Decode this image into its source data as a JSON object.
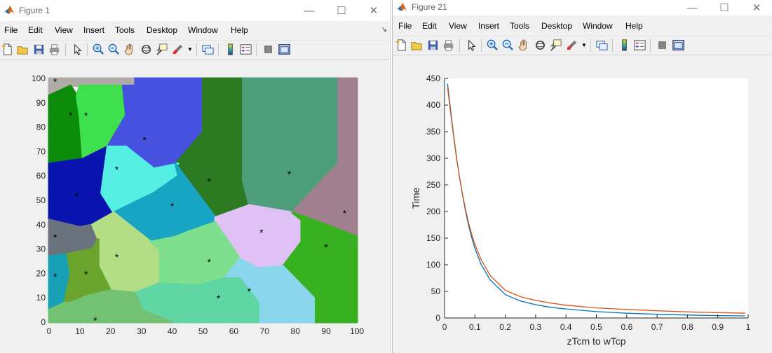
{
  "fig1": {
    "title": "Figure 1",
    "menu": [
      "File",
      "Edit",
      "View",
      "Insert",
      "Tools",
      "Desktop",
      "Window",
      "Help"
    ],
    "x_ticks": [
      "0",
      "10",
      "20",
      "30",
      "40",
      "50",
      "60",
      "70",
      "80",
      "90",
      "100"
    ],
    "y_ticks": [
      "0",
      "10",
      "20",
      "30",
      "40",
      "50",
      "60",
      "70",
      "80",
      "90",
      "100"
    ],
    "cells": [
      {
        "color": "#b0aba5",
        "points": [
          [
            0,
            100
          ],
          [
            28,
            100
          ],
          [
            28,
            97
          ],
          [
            7,
            97
          ],
          [
            0,
            93
          ]
        ]
      },
      {
        "color": "#0b8c0b",
        "points": [
          [
            0,
            93
          ],
          [
            7,
            97
          ],
          [
            9,
            93
          ],
          [
            10,
            84
          ],
          [
            11,
            65
          ],
          [
            0,
            65
          ]
        ]
      },
      {
        "color": "#3ee04d",
        "points": [
          [
            9,
            93
          ],
          [
            10,
            97
          ],
          [
            24,
            97
          ],
          [
            25,
            85
          ],
          [
            19,
            72
          ],
          [
            11,
            67
          ],
          [
            10,
            84
          ]
        ]
      },
      {
        "color": "#4651e0",
        "points": [
          [
            28,
            97
          ],
          [
            28,
            100
          ],
          [
            50,
            100
          ],
          [
            50,
            78
          ],
          [
            42,
            65
          ],
          [
            34,
            63
          ],
          [
            25,
            72
          ],
          [
            19,
            72
          ],
          [
            25,
            85
          ],
          [
            24,
            97
          ]
        ]
      },
      {
        "color": "#2b7a22",
        "points": [
          [
            50,
            100
          ],
          [
            63,
            100
          ],
          [
            63,
            58
          ],
          [
            65,
            48
          ],
          [
            54,
            43
          ],
          [
            41,
            65
          ],
          [
            50,
            78
          ]
        ]
      },
      {
        "color": "#4e9e7b",
        "points": [
          [
            63,
            100
          ],
          [
            94,
            100
          ],
          [
            94,
            65
          ],
          [
            90,
            60
          ],
          [
            79,
            45
          ],
          [
            65,
            48
          ],
          [
            63,
            58
          ]
        ]
      },
      {
        "color": "#a07f8e",
        "points": [
          [
            94,
            100
          ],
          [
            100,
            100
          ],
          [
            100,
            35
          ],
          [
            90,
            40
          ],
          [
            79,
            45
          ],
          [
            90,
            60
          ],
          [
            94,
            65
          ]
        ]
      },
      {
        "color": "#0a15b0",
        "points": [
          [
            0,
            65
          ],
          [
            11,
            67
          ],
          [
            19,
            72
          ],
          [
            17,
            53
          ],
          [
            21,
            45
          ],
          [
            14,
            40
          ],
          [
            10,
            39
          ],
          [
            0,
            42
          ]
        ]
      },
      {
        "color": "#55efe4",
        "points": [
          [
            19,
            72
          ],
          [
            25,
            72
          ],
          [
            34,
            63
          ],
          [
            42,
            65
          ],
          [
            41,
            65
          ],
          [
            42,
            60
          ],
          [
            34,
            53
          ],
          [
            21,
            45
          ],
          [
            17,
            53
          ]
        ]
      },
      {
        "color": "#18a5c3",
        "points": [
          [
            21,
            45
          ],
          [
            34,
            53
          ],
          [
            42,
            60
          ],
          [
            41,
            65
          ],
          [
            54,
            43
          ],
          [
            54,
            41
          ],
          [
            45,
            37
          ],
          [
            41,
            35
          ],
          [
            33,
            33
          ]
        ]
      },
      {
        "color": "#6a727d",
        "points": [
          [
            0,
            42
          ],
          [
            10,
            39
          ],
          [
            14,
            40
          ],
          [
            16,
            34
          ],
          [
            14,
            30
          ],
          [
            6,
            28
          ],
          [
            0,
            27
          ]
        ]
      },
      {
        "color": "#b3de85",
        "points": [
          [
            14,
            40
          ],
          [
            21,
            45
          ],
          [
            33,
            33
          ],
          [
            36,
            30
          ],
          [
            36,
            16
          ],
          [
            28,
            12
          ],
          [
            20,
            13
          ],
          [
            16,
            23
          ],
          [
            16,
            34
          ]
        ]
      },
      {
        "color": "#e0c1f5",
        "points": [
          [
            54,
            41
          ],
          [
            54,
            43
          ],
          [
            65,
            48
          ],
          [
            79,
            45
          ],
          [
            82,
            42
          ],
          [
            82,
            33
          ],
          [
            76,
            23
          ],
          [
            68,
            22
          ],
          [
            62,
            26
          ]
        ]
      },
      {
        "color": "#38b121",
        "points": [
          [
            82,
            42
          ],
          [
            79,
            45
          ],
          [
            90,
            40
          ],
          [
            100,
            35
          ],
          [
            100,
            0
          ],
          [
            86,
            0
          ],
          [
            86,
            10
          ],
          [
            76,
            23
          ],
          [
            82,
            33
          ]
        ]
      },
      {
        "color": "#17a0b6",
        "points": [
          [
            0,
            27
          ],
          [
            6,
            28
          ],
          [
            7,
            20
          ],
          [
            5,
            8
          ],
          [
            0,
            5
          ]
        ]
      },
      {
        "color": "#6aa42c",
        "points": [
          [
            6,
            28
          ],
          [
            14,
            30
          ],
          [
            16,
            34
          ],
          [
            16,
            23
          ],
          [
            20,
            13
          ],
          [
            13,
            11
          ],
          [
            7,
            8
          ],
          [
            5,
            8
          ],
          [
            7,
            20
          ]
        ]
      },
      {
        "color": "#7ee08f",
        "points": [
          [
            33,
            33
          ],
          [
            41,
            35
          ],
          [
            45,
            37
          ],
          [
            54,
            41
          ],
          [
            62,
            26
          ],
          [
            57,
            18
          ],
          [
            48,
            15
          ],
          [
            36,
            16
          ],
          [
            36,
            30
          ]
        ]
      },
      {
        "color": "#8ad6ed",
        "points": [
          [
            62,
            26
          ],
          [
            68,
            22
          ],
          [
            76,
            23
          ],
          [
            86,
            10
          ],
          [
            86,
            0
          ],
          [
            68,
            0
          ],
          [
            68,
            8
          ],
          [
            62,
            18
          ],
          [
            57,
            18
          ]
        ]
      },
      {
        "color": "#5fd6a4",
        "points": [
          [
            28,
            12
          ],
          [
            36,
            16
          ],
          [
            48,
            15
          ],
          [
            57,
            18
          ],
          [
            62,
            18
          ],
          [
            68,
            8
          ],
          [
            68,
            0
          ],
          [
            40,
            0
          ],
          [
            30,
            5
          ]
        ]
      },
      {
        "color": "#73c274",
        "points": [
          [
            0,
            5
          ],
          [
            5,
            8
          ],
          [
            7,
            8
          ],
          [
            13,
            11
          ],
          [
            20,
            13
          ],
          [
            28,
            12
          ],
          [
            30,
            5
          ],
          [
            40,
            0
          ],
          [
            0,
            0
          ]
        ]
      }
    ],
    "centroids": [
      [
        2,
        99
      ],
      [
        7,
        85
      ],
      [
        12,
        85
      ],
      [
        31,
        75
      ],
      [
        22,
        63
      ],
      [
        52,
        58
      ],
      [
        78,
        61
      ],
      [
        96,
        45
      ],
      [
        9,
        52
      ],
      [
        40,
        48
      ],
      [
        2,
        35
      ],
      [
        69,
        37
      ],
      [
        90,
        31
      ],
      [
        22,
        27
      ],
      [
        52,
        25
      ],
      [
        2,
        19
      ],
      [
        12,
        20
      ],
      [
        55,
        10
      ],
      [
        65,
        13
      ],
      [
        15,
        1
      ]
    ],
    "marker": "*"
  },
  "fig2": {
    "title": "Figure 21",
    "menu": [
      "File",
      "Edit",
      "View",
      "Insert",
      "Tools",
      "Desktop",
      "Window",
      "Help"
    ],
    "chart_data": {
      "type": "line",
      "xlabel": "zTcm to wTcp",
      "ylabel": "Time",
      "xlim": [
        0,
        1
      ],
      "ylim": [
        0,
        450
      ],
      "x_ticks": [
        "0",
        "0.1",
        "0.2",
        "0.3",
        "0.4",
        "0.5",
        "0.6",
        "0.7",
        "0.8",
        "0.9",
        "1"
      ],
      "y_ticks": [
        "0",
        "50",
        "100",
        "150",
        "200",
        "250",
        "300",
        "350",
        "400",
        "450"
      ],
      "series": [
        {
          "color": "#0072bd",
          "x": [
            0.01,
            0.02,
            0.03,
            0.04,
            0.05,
            0.06,
            0.07,
            0.08,
            0.09,
            0.1,
            0.12,
            0.15,
            0.2,
            0.25,
            0.3,
            0.35,
            0.4,
            0.5,
            0.6,
            0.7,
            0.8,
            0.9,
            0.99
          ],
          "y": [
            440,
            390,
            343,
            300,
            261,
            228,
            198,
            172,
            150,
            131,
            101,
            72,
            44,
            32,
            25,
            20,
            17,
            12,
            9,
            7,
            5.5,
            4.5,
            4
          ]
        },
        {
          "color": "#d95319",
          "x": [
            0.01,
            0.02,
            0.03,
            0.04,
            0.05,
            0.06,
            0.07,
            0.08,
            0.09,
            0.1,
            0.12,
            0.15,
            0.2,
            0.25,
            0.3,
            0.35,
            0.4,
            0.5,
            0.6,
            0.7,
            0.8,
            0.9,
            0.99
          ],
          "y": [
            433,
            385,
            340,
            298,
            262,
            230,
            202,
            177,
            156,
            138,
            110,
            80,
            52,
            40,
            33,
            28,
            24,
            19,
            16,
            13.5,
            11.5,
            10,
            9
          ]
        }
      ]
    }
  }
}
